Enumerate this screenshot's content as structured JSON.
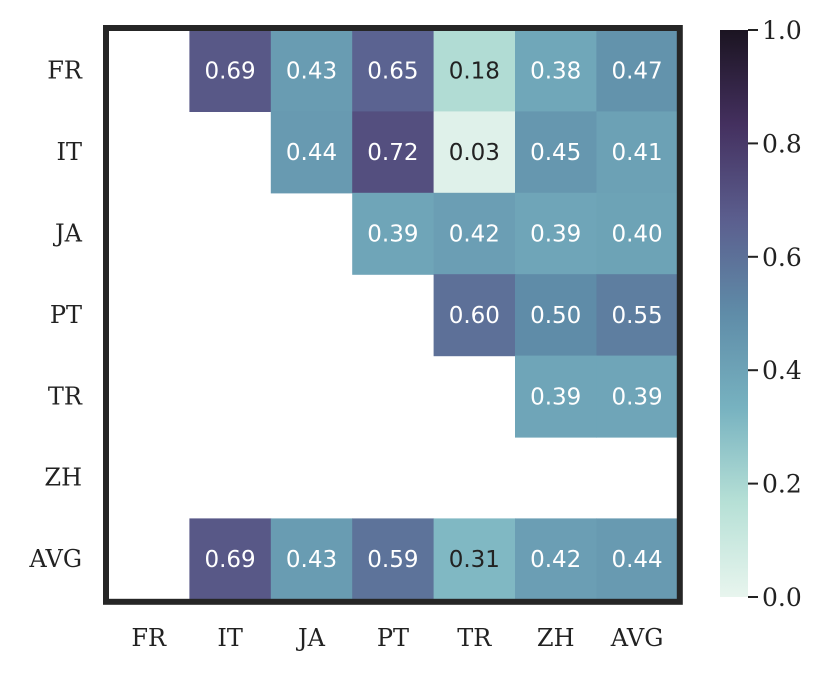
{
  "chart_data": {
    "type": "heatmap",
    "rows": [
      "FR",
      "IT",
      "JA",
      "PT",
      "TR",
      "ZH",
      "AVG"
    ],
    "columns": [
      "FR",
      "IT",
      "JA",
      "PT",
      "TR",
      "ZH",
      "AVG"
    ],
    "cells": [
      {
        "row": "FR",
        "col": "IT",
        "value": 0.69,
        "label": "0.69"
      },
      {
        "row": "FR",
        "col": "JA",
        "value": 0.43,
        "label": "0.43"
      },
      {
        "row": "FR",
        "col": "PT",
        "value": 0.65,
        "label": "0.65"
      },
      {
        "row": "FR",
        "col": "TR",
        "value": 0.18,
        "label": "0.18"
      },
      {
        "row": "FR",
        "col": "ZH",
        "value": 0.38,
        "label": "0.38"
      },
      {
        "row": "FR",
        "col": "AVG",
        "value": 0.47,
        "label": "0.47"
      },
      {
        "row": "IT",
        "col": "JA",
        "value": 0.44,
        "label": "0.44"
      },
      {
        "row": "IT",
        "col": "PT",
        "value": 0.72,
        "label": "0.72"
      },
      {
        "row": "IT",
        "col": "TR",
        "value": 0.03,
        "label": "0.03"
      },
      {
        "row": "IT",
        "col": "ZH",
        "value": 0.45,
        "label": "0.45"
      },
      {
        "row": "IT",
        "col": "AVG",
        "value": 0.41,
        "label": "0.41"
      },
      {
        "row": "JA",
        "col": "PT",
        "value": 0.39,
        "label": "0.39"
      },
      {
        "row": "JA",
        "col": "TR",
        "value": 0.42,
        "label": "0.42"
      },
      {
        "row": "JA",
        "col": "ZH",
        "value": 0.39,
        "label": "0.39"
      },
      {
        "row": "JA",
        "col": "AVG",
        "value": 0.4,
        "label": "0.40"
      },
      {
        "row": "PT",
        "col": "TR",
        "value": 0.6,
        "label": "0.60"
      },
      {
        "row": "PT",
        "col": "ZH",
        "value": 0.5,
        "label": "0.50"
      },
      {
        "row": "PT",
        "col": "AVG",
        "value": 0.55,
        "label": "0.55"
      },
      {
        "row": "TR",
        "col": "ZH",
        "value": 0.39,
        "label": "0.39"
      },
      {
        "row": "TR",
        "col": "AVG",
        "value": 0.39,
        "label": "0.39"
      },
      {
        "row": "AVG",
        "col": "IT",
        "value": 0.69,
        "label": "0.69"
      },
      {
        "row": "AVG",
        "col": "JA",
        "value": 0.43,
        "label": "0.43"
      },
      {
        "row": "AVG",
        "col": "PT",
        "value": 0.59,
        "label": "0.59"
      },
      {
        "row": "AVG",
        "col": "TR",
        "value": 0.31,
        "label": "0.31"
      },
      {
        "row": "AVG",
        "col": "ZH",
        "value": 0.42,
        "label": "0.42"
      },
      {
        "row": "AVG",
        "col": "AVG",
        "value": 0.44,
        "label": "0.44"
      }
    ],
    "colorbar": {
      "range": [
        0.0,
        1.0
      ],
      "ticks": [
        0.0,
        0.2,
        0.4,
        0.6,
        0.8,
        1.0
      ],
      "tick_labels": [
        "0.0",
        "0.2",
        "0.4",
        "0.6",
        "0.8",
        "1.0"
      ],
      "colormap_stops": [
        "#e8f5ee",
        "#b6e0d6",
        "#77b2c0",
        "#5f8ca8",
        "#5b5e8e",
        "#44305f",
        "#1b1421"
      ]
    },
    "title": "",
    "xlabel": "",
    "ylabel": "",
    "grid": false,
    "frame_color": "#262626",
    "label_dark_color": "#222222",
    "label_light_color": "#ffffff"
  }
}
